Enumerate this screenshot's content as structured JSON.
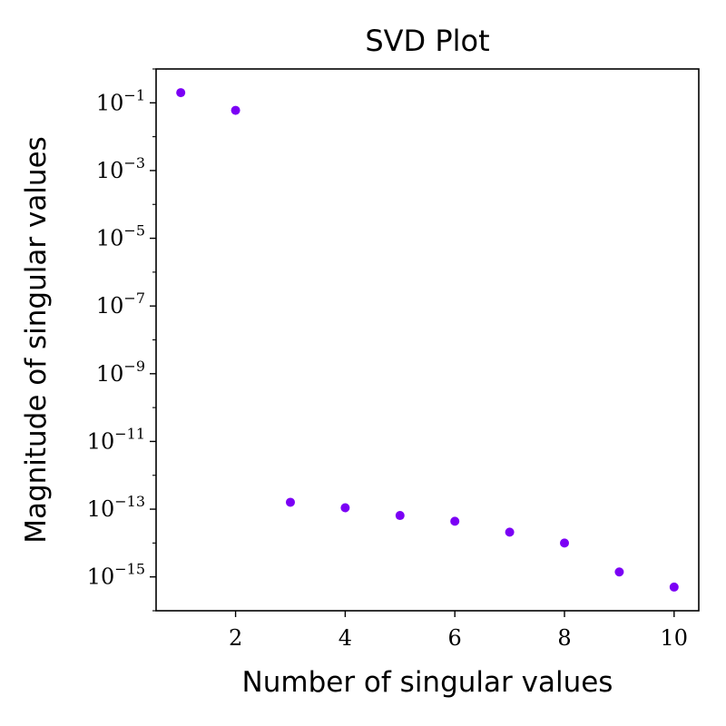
{
  "chart_data": {
    "type": "scatter",
    "title": "SVD Plot",
    "xlabel": "Number of singular values",
    "ylabel": "Magnitude of singular values",
    "y_scale": "log",
    "grid": false,
    "xlim": [
      0.55,
      10.45
    ],
    "ylim": [
      1e-16,
      1
    ],
    "x_ticks": [
      {
        "value": 2,
        "label": "2"
      },
      {
        "value": 4,
        "label": "4"
      },
      {
        "value": 6,
        "label": "6"
      },
      {
        "value": 8,
        "label": "8"
      },
      {
        "value": 10,
        "label": "10"
      }
    ],
    "y_ticks": [
      {
        "value": 0.1,
        "base": "10",
        "exp": "−1"
      },
      {
        "value": 0.001,
        "base": "10",
        "exp": "−3"
      },
      {
        "value": 1e-05,
        "base": "10",
        "exp": "−5"
      },
      {
        "value": 1e-07,
        "base": "10",
        "exp": "−7"
      },
      {
        "value": 1e-09,
        "base": "10",
        "exp": "−9"
      },
      {
        "value": 1e-11,
        "base": "10",
        "exp": "−11"
      },
      {
        "value": 1e-13,
        "base": "10",
        "exp": "−13"
      },
      {
        "value": 1e-15,
        "base": "10",
        "exp": "−15"
      }
    ],
    "series": [
      {
        "color": "#7b00f5",
        "x": [
          1,
          2,
          3,
          4,
          5,
          6,
          7,
          8,
          9,
          10
        ],
        "y": [
          0.2,
          0.06,
          1.6e-13,
          1.1e-13,
          6.5e-14,
          4.4e-14,
          2.1e-14,
          1e-14,
          1.4e-15,
          5e-16
        ]
      }
    ]
  }
}
